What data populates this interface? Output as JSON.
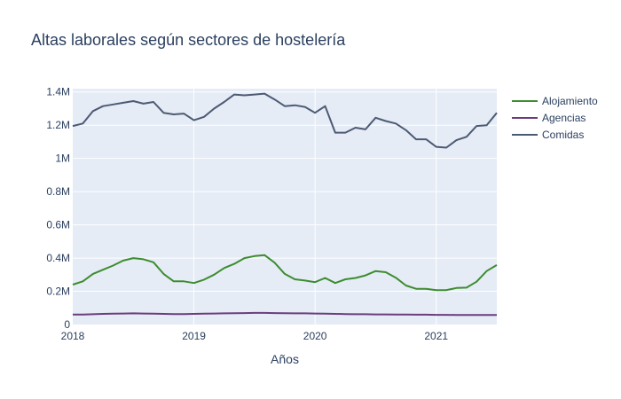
{
  "chart_data": {
    "type": "line",
    "title": "Altas laborales según sectores de hostelería",
    "xlabel": "Años",
    "ylabel": "",
    "x_ticks": [
      "2018",
      "2019",
      "2020",
      "2021"
    ],
    "y_ticks": [
      "0",
      "0.2M",
      "0.4M",
      "0.6M",
      "0.8M",
      "1M",
      "1.2M",
      "1.4M"
    ],
    "ylim": [
      0,
      1420000
    ],
    "xlim": [
      "2018-01",
      "2021-07"
    ],
    "grid": true,
    "legend_position": "top-right",
    "x": [
      "2018-01",
      "2018-02",
      "2018-03",
      "2018-04",
      "2018-05",
      "2018-06",
      "2018-07",
      "2018-08",
      "2018-09",
      "2018-10",
      "2018-11",
      "2018-12",
      "2019-01",
      "2019-02",
      "2019-03",
      "2019-04",
      "2019-05",
      "2019-06",
      "2019-07",
      "2019-08",
      "2019-09",
      "2019-10",
      "2019-11",
      "2019-12",
      "2020-01",
      "2020-02",
      "2020-03",
      "2020-04",
      "2020-05",
      "2020-06",
      "2020-07",
      "2020-08",
      "2020-09",
      "2020-10",
      "2020-11",
      "2020-12",
      "2021-01",
      "2021-02",
      "2021-03",
      "2021-04",
      "2021-05",
      "2021-06",
      "2021-07"
    ],
    "series": [
      {
        "name": "Alojamiento",
        "color": "#3d8c2f",
        "values": [
          240000,
          260000,
          305000,
          330000,
          355000,
          385000,
          400000,
          393000,
          375000,
          305000,
          260000,
          260000,
          250000,
          270000,
          300000,
          340000,
          365000,
          400000,
          412000,
          418000,
          372000,
          305000,
          272000,
          265000,
          255000,
          280000,
          250000,
          272000,
          280000,
          296000,
          322000,
          315000,
          282000,
          235000,
          215000,
          215000,
          207000,
          207000,
          220000,
          222000,
          258000,
          322000,
          358000
        ]
      },
      {
        "name": "Agencias",
        "color": "#6c3d7d",
        "values": [
          60000,
          60000,
          62000,
          64000,
          65000,
          66000,
          67000,
          66000,
          65000,
          64000,
          63000,
          63000,
          64000,
          65000,
          66000,
          67000,
          68000,
          69000,
          70000,
          70000,
          69000,
          68000,
          67000,
          67000,
          66000,
          65000,
          64000,
          63000,
          62000,
          62000,
          61000,
          61000,
          60000,
          60000,
          59000,
          59000,
          58000,
          58000,
          57000,
          57000,
          57000,
          57000,
          57000
        ]
      },
      {
        "name": "Comidas",
        "color": "#4c5a73",
        "values": [
          1195000,
          1210000,
          1285000,
          1315000,
          1325000,
          1335000,
          1345000,
          1330000,
          1340000,
          1275000,
          1265000,
          1270000,
          1230000,
          1250000,
          1300000,
          1340000,
          1385000,
          1380000,
          1385000,
          1390000,
          1355000,
          1315000,
          1320000,
          1310000,
          1275000,
          1315000,
          1155000,
          1155000,
          1185000,
          1175000,
          1245000,
          1225000,
          1210000,
          1170000,
          1115000,
          1115000,
          1070000,
          1065000,
          1110000,
          1130000,
          1195000,
          1200000,
          1275000
        ]
      }
    ]
  }
}
